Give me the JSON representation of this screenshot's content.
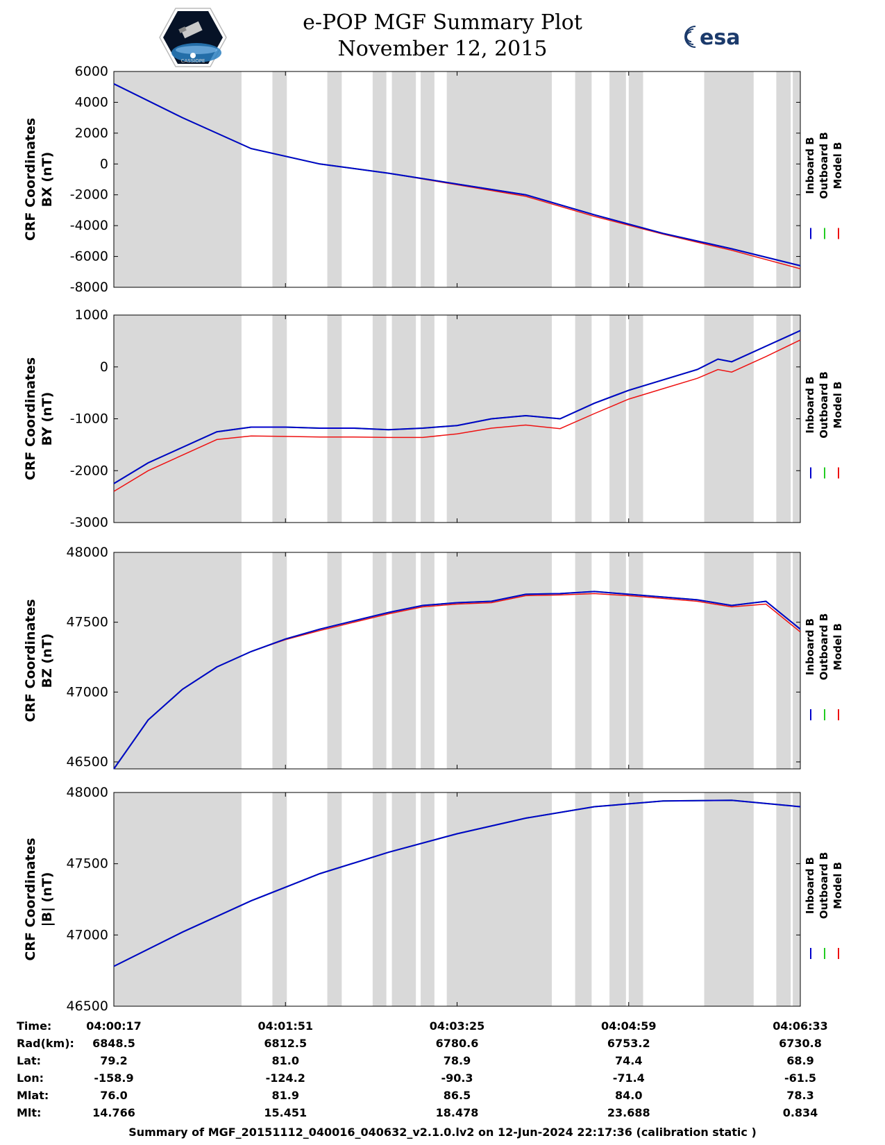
{
  "header": {
    "title": "e-POP MGF Summary Plot",
    "date": "November 12, 2015",
    "logo_left_label": "CASSIOPE",
    "logo_right_label": "esa"
  },
  "colors": {
    "inboard": "#0000cc",
    "outboard": "#22cc22",
    "model": "#ee1111",
    "gap_shading": "#d9d9d9"
  },
  "legend": {
    "entries": [
      {
        "label": "Inboard B",
        "color": "#0000cc"
      },
      {
        "label": "Outboard B",
        "color": "#22cc22"
      },
      {
        "label": "Model B",
        "color": "#ee1111"
      }
    ]
  },
  "chart_data": [
    {
      "type": "line",
      "ylabel_line1": "CRF Coordinates",
      "ylabel_line2": "BX (nT)",
      "ylim": [
        -8000,
        6000
      ],
      "yticks": [
        6000,
        4000,
        2000,
        0,
        -2000,
        -4000,
        -6000,
        -8000
      ],
      "x": [
        0,
        0.1,
        0.2,
        0.3,
        0.4,
        0.5,
        0.6,
        0.7,
        0.8,
        0.9,
        1.0
      ],
      "series": [
        {
          "name": "Inboard B",
          "values": [
            5200,
            3000,
            1000,
            0,
            -600,
            -1300,
            -2000,
            -3300,
            -4500,
            -5500,
            -6600
          ]
        },
        {
          "name": "Outboard B",
          "values": [
            5200,
            3000,
            1000,
            0,
            -600,
            -1300,
            -2000,
            -3300,
            -4500,
            -5500,
            -6600
          ]
        },
        {
          "name": "Model B",
          "values": [
            5200,
            3000,
            1000,
            0,
            -600,
            -1350,
            -2100,
            -3400,
            -4550,
            -5600,
            -6800
          ]
        }
      ]
    },
    {
      "type": "line",
      "ylabel_line1": "CRF Coordinates",
      "ylabel_line2": "BY (nT)",
      "ylim": [
        -3000,
        1000
      ],
      "yticks": [
        1000,
        0,
        -1000,
        -2000,
        -3000
      ],
      "x": [
        0,
        0.05,
        0.1,
        0.15,
        0.2,
        0.25,
        0.3,
        0.35,
        0.4,
        0.45,
        0.5,
        0.55,
        0.6,
        0.65,
        0.7,
        0.75,
        0.8,
        0.85,
        0.88,
        0.9,
        0.95,
        1.0
      ],
      "series": [
        {
          "name": "Inboard B",
          "values": [
            -2250,
            -1850,
            -1550,
            -1250,
            -1160,
            -1160,
            -1180,
            -1180,
            -1210,
            -1180,
            -1130,
            -1000,
            -940,
            -1000,
            -700,
            -450,
            -250,
            -50,
            150,
            100,
            400,
            700
          ]
        },
        {
          "name": "Outboard B",
          "values": [
            -2250,
            -1850,
            -1550,
            -1250,
            -1160,
            -1160,
            -1180,
            -1180,
            -1210,
            -1180,
            -1130,
            -1000,
            -940,
            -1000,
            -700,
            -450,
            -250,
            -50,
            150,
            100,
            400,
            700
          ]
        },
        {
          "name": "Model B",
          "values": [
            -2400,
            -2000,
            -1700,
            -1400,
            -1330,
            -1340,
            -1350,
            -1350,
            -1360,
            -1360,
            -1290,
            -1180,
            -1120,
            -1190,
            -900,
            -620,
            -420,
            -220,
            -50,
            -100,
            200,
            520
          ]
        }
      ]
    },
    {
      "type": "line",
      "ylabel_line1": "CRF Coordinates",
      "ylabel_line2": "BZ (nT)",
      "ylim": [
        46450,
        48000
      ],
      "yticks": [
        48000,
        47500,
        47000,
        46500
      ],
      "x": [
        0,
        0.05,
        0.1,
        0.15,
        0.2,
        0.25,
        0.3,
        0.35,
        0.4,
        0.45,
        0.5,
        0.55,
        0.6,
        0.65,
        0.7,
        0.75,
        0.8,
        0.85,
        0.9,
        0.95,
        1.0
      ],
      "series": [
        {
          "name": "Inboard B",
          "values": [
            46450,
            46800,
            47020,
            47180,
            47290,
            47380,
            47450,
            47510,
            47570,
            47620,
            47640,
            47650,
            47700,
            47705,
            47720,
            47700,
            47680,
            47660,
            47620,
            47650,
            47450
          ]
        },
        {
          "name": "Outboard B",
          "values": [
            46450,
            46800,
            47020,
            47180,
            47290,
            47380,
            47450,
            47510,
            47570,
            47620,
            47640,
            47650,
            47700,
            47705,
            47720,
            47700,
            47680,
            47660,
            47620,
            47650,
            47450
          ]
        },
        {
          "name": "Model B",
          "values": [
            46450,
            46800,
            47020,
            47180,
            47290,
            47375,
            47440,
            47500,
            47560,
            47610,
            47630,
            47640,
            47690,
            47695,
            47705,
            47690,
            47670,
            47650,
            47610,
            47630,
            47430
          ]
        }
      ]
    },
    {
      "type": "line",
      "ylabel_line1": "CRF Coordinates",
      "ylabel_line2": "|B| (nT)",
      "ylim": [
        46500,
        48000
      ],
      "yticks": [
        48000,
        47500,
        47000,
        46500
      ],
      "x": [
        0,
        0.1,
        0.2,
        0.3,
        0.4,
        0.5,
        0.6,
        0.7,
        0.8,
        0.9,
        1.0
      ],
      "series": [
        {
          "name": "Inboard B",
          "values": [
            46780,
            47020,
            47240,
            47430,
            47580,
            47710,
            47820,
            47900,
            47940,
            47945,
            47900
          ]
        },
        {
          "name": "Outboard B",
          "values": [
            46780,
            47020,
            47240,
            47430,
            47580,
            47710,
            47820,
            47900,
            47940,
            47945,
            47900
          ]
        },
        {
          "name": "Model B",
          "values": [
            46780,
            47020,
            47240,
            47430,
            47580,
            47710,
            47820,
            47900,
            47940,
            47945,
            47900
          ]
        }
      ]
    }
  ],
  "gap_bands": [
    [
      0.0,
      0.186
    ],
    [
      0.231,
      0.252
    ],
    [
      0.311,
      0.332
    ],
    [
      0.377,
      0.397
    ],
    [
      0.405,
      0.44
    ],
    [
      0.447,
      0.467
    ],
    [
      0.485,
      0.638
    ],
    [
      0.672,
      0.696
    ],
    [
      0.722,
      0.746
    ],
    [
      0.75,
      0.771
    ],
    [
      0.86,
      0.932
    ],
    [
      0.965,
      0.986
    ],
    [
      0.989,
      1.0
    ]
  ],
  "ephemeris": {
    "row_labels": [
      "Time:",
      "Rad(km):",
      "Lat:",
      "Lon:",
      "Mlat:",
      "Mlt:"
    ],
    "columns": [
      {
        "values": [
          "04:00:17",
          "6848.5",
          "79.2",
          "-158.9",
          "76.0",
          "14.766"
        ]
      },
      {
        "values": [
          "04:01:51",
          "6812.5",
          "81.0",
          "-124.2",
          "81.9",
          "15.451"
        ]
      },
      {
        "values": [
          "04:03:25",
          "6780.6",
          "78.9",
          "-90.3",
          "86.5",
          "18.478"
        ]
      },
      {
        "values": [
          "04:04:59",
          "6753.2",
          "74.4",
          "-71.4",
          "84.0",
          "23.688"
        ]
      },
      {
        "values": [
          "04:06:33",
          "6730.8",
          "68.9",
          "-61.5",
          "78.3",
          "0.834"
        ]
      }
    ]
  },
  "footer": {
    "text": "Summary of MGF_20151112_040016_040632_v2.1.0.lv2 on 12-Jun-2024 22:17:36 (calibration static )"
  }
}
